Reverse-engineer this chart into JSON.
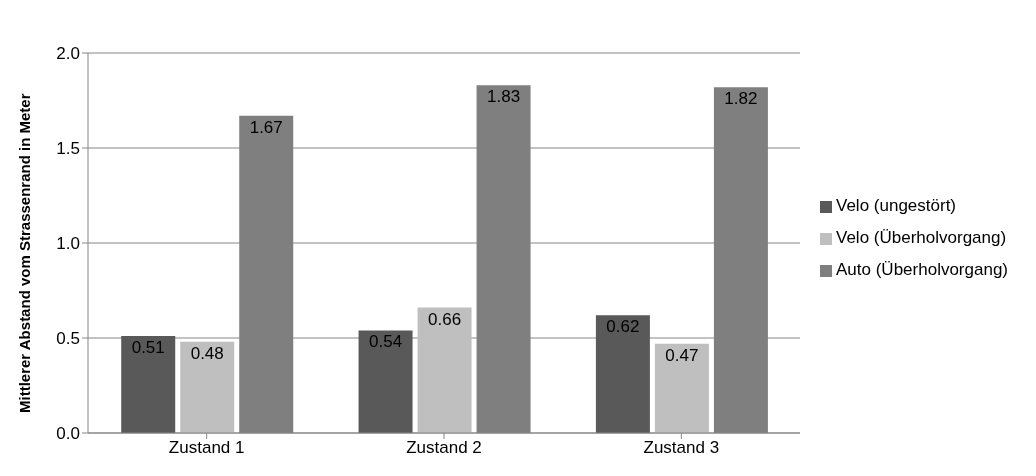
{
  "chart_data": {
    "type": "bar",
    "ylabel": "Mittlerer Abstand vom Strassenrand in Meter",
    "categories": [
      "Zustand 1",
      "Zustand 2",
      "Zustand 3"
    ],
    "series": [
      {
        "name": "Velo (ungestört)",
        "color": "#595959",
        "values": [
          0.51,
          0.54,
          0.62
        ]
      },
      {
        "name": "Velo (Überholvorgang)",
        "color": "#bfbfbf",
        "values": [
          0.48,
          0.66,
          0.47
        ]
      },
      {
        "name": "Auto (Überholvorgang)",
        "color": "#7f7f7f",
        "values": [
          1.67,
          1.83,
          1.82
        ]
      }
    ],
    "ylim": [
      0,
      2
    ],
    "yticks": [
      {
        "value": 0,
        "label": "0.0"
      },
      {
        "value": 0.5,
        "label": "0.5"
      },
      {
        "value": 1,
        "label": "1.0"
      },
      {
        "value": 1.5,
        "label": "1.5"
      },
      {
        "value": 2,
        "label": "2.0"
      }
    ],
    "grid": "y",
    "legend": "right",
    "data_labels": true
  }
}
